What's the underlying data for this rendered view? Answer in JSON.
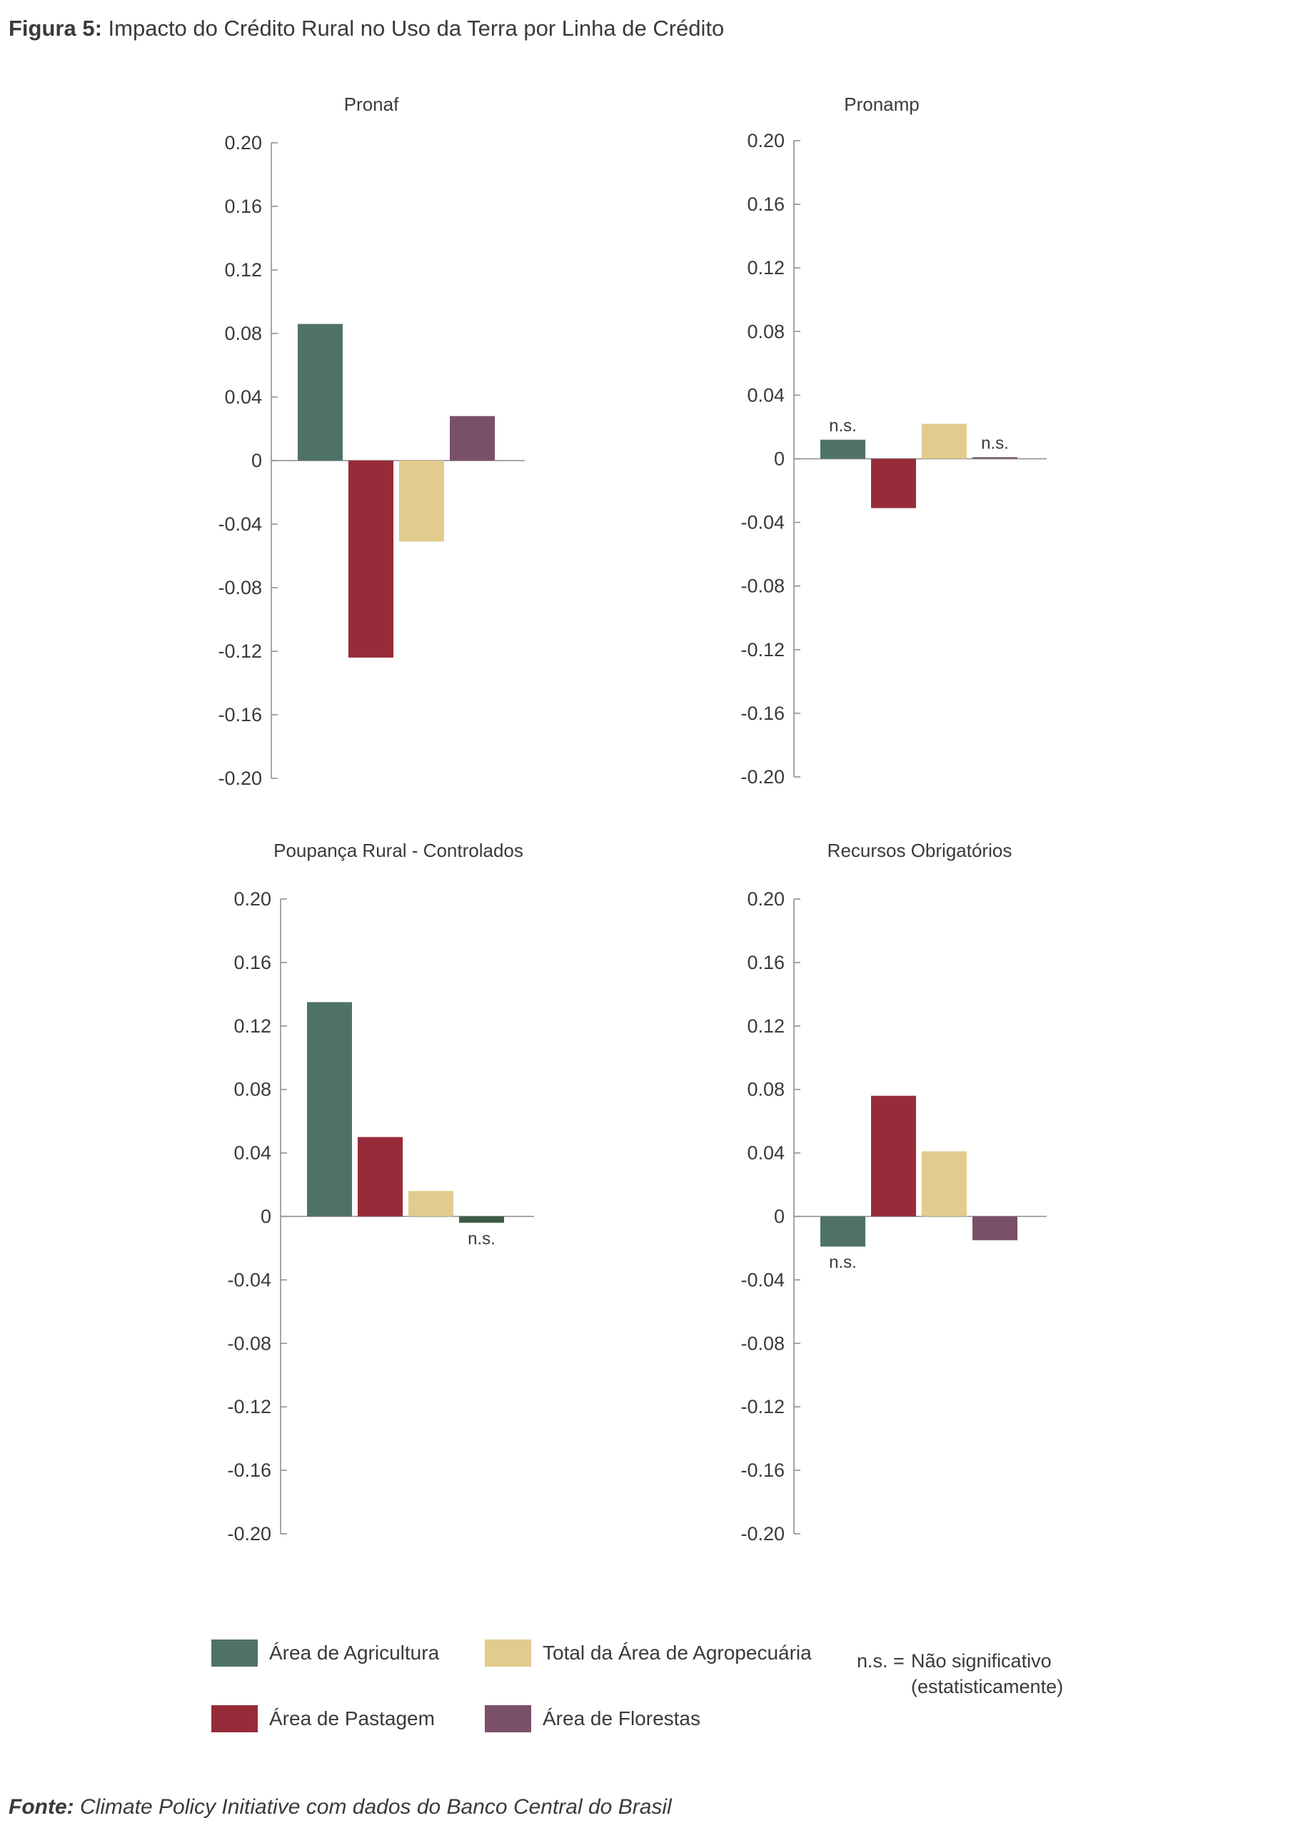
{
  "figure": {
    "title_label": "Figura 5:",
    "title_text": "Impacto do Crédito Rural no Uso da Terra por Linha de Crédito"
  },
  "colors": {
    "agricultura": "#4f7268",
    "pastagem": "#982b39",
    "agropecuaria": "#e2cb8c",
    "florestas": "#7a5069",
    "ns_bar": "#3f5a45",
    "axis": "#8a8a8a"
  },
  "chart_data": [
    {
      "type": "bar",
      "title": "Pronaf",
      "categories": [
        "Área de Agricultura",
        "Área de Pastagem",
        "Total da Área de Agropecuária",
        "Área de Florestas"
      ],
      "values": [
        0.086,
        -0.124,
        -0.051,
        0.028
      ],
      "annotations": [
        "",
        "",
        "",
        ""
      ],
      "ylim": [
        -0.2,
        0.2
      ],
      "yticks": [
        "0.20",
        "0.16",
        "0.12",
        "0.08",
        "0.04",
        "0",
        "-0.04",
        "-0.08",
        "-0.12",
        "-0.16",
        "-0.20"
      ]
    },
    {
      "type": "bar",
      "title": "Pronamp",
      "categories": [
        "Área de Agricultura",
        "Área de Pastagem",
        "Total da Área de Agropecuária",
        "Área de Florestas"
      ],
      "values": [
        0.012,
        -0.031,
        0.022,
        0.001
      ],
      "annotations": [
        "n.s.",
        "",
        "",
        "n.s."
      ],
      "ylim": [
        -0.2,
        0.2
      ],
      "yticks": [
        "0.20",
        "0.16",
        "0.12",
        "0.08",
        "0.04",
        "0",
        "-0.04",
        "-0.08",
        "-0.12",
        "-0.16",
        "-0.20"
      ]
    },
    {
      "type": "bar",
      "title": "Poupança Rural - Controlados",
      "categories": [
        "Área de Agricultura",
        "Área de Pastagem",
        "Total da Área de Agropecuária",
        "Área de Florestas"
      ],
      "values": [
        0.135,
        0.05,
        0.016,
        -0.004
      ],
      "annotations": [
        "",
        "",
        "",
        "n.s."
      ],
      "ylim": [
        -0.2,
        0.2
      ],
      "yticks": [
        "0.20",
        "0.16",
        "0.12",
        "0.08",
        "0.04",
        "0",
        "-0.04",
        "-0.08",
        "-0.12",
        "-0.16",
        "-0.20"
      ]
    },
    {
      "type": "bar",
      "title": "Recursos Obrigatórios",
      "categories": [
        "Área de Agricultura",
        "Área de Pastagem",
        "Total da Área de Agropecuária",
        "Área de Florestas"
      ],
      "values": [
        -0.019,
        0.076,
        0.041,
        -0.015
      ],
      "annotations": [
        "n.s.",
        "",
        "",
        ""
      ],
      "ylim": [
        -0.2,
        0.2
      ],
      "yticks": [
        "0.20",
        "0.16",
        "0.12",
        "0.08",
        "0.04",
        "0",
        "-0.04",
        "-0.08",
        "-0.12",
        "-0.16",
        "-0.20"
      ]
    }
  ],
  "legend": {
    "agricultura": "Área de Agricultura",
    "agropecuaria": "Total da Área de Agropecuária",
    "pastagem": "Área de Pastagem",
    "florestas": "Área de Florestas",
    "ns_abbr": "n.s. =",
    "ns_line1": "Não significativo",
    "ns_line2": "(estatisticamente)"
  },
  "source": {
    "label": "Fonte:",
    "text": "Climate Policy Initiative com dados do Banco Central do Brasil"
  }
}
